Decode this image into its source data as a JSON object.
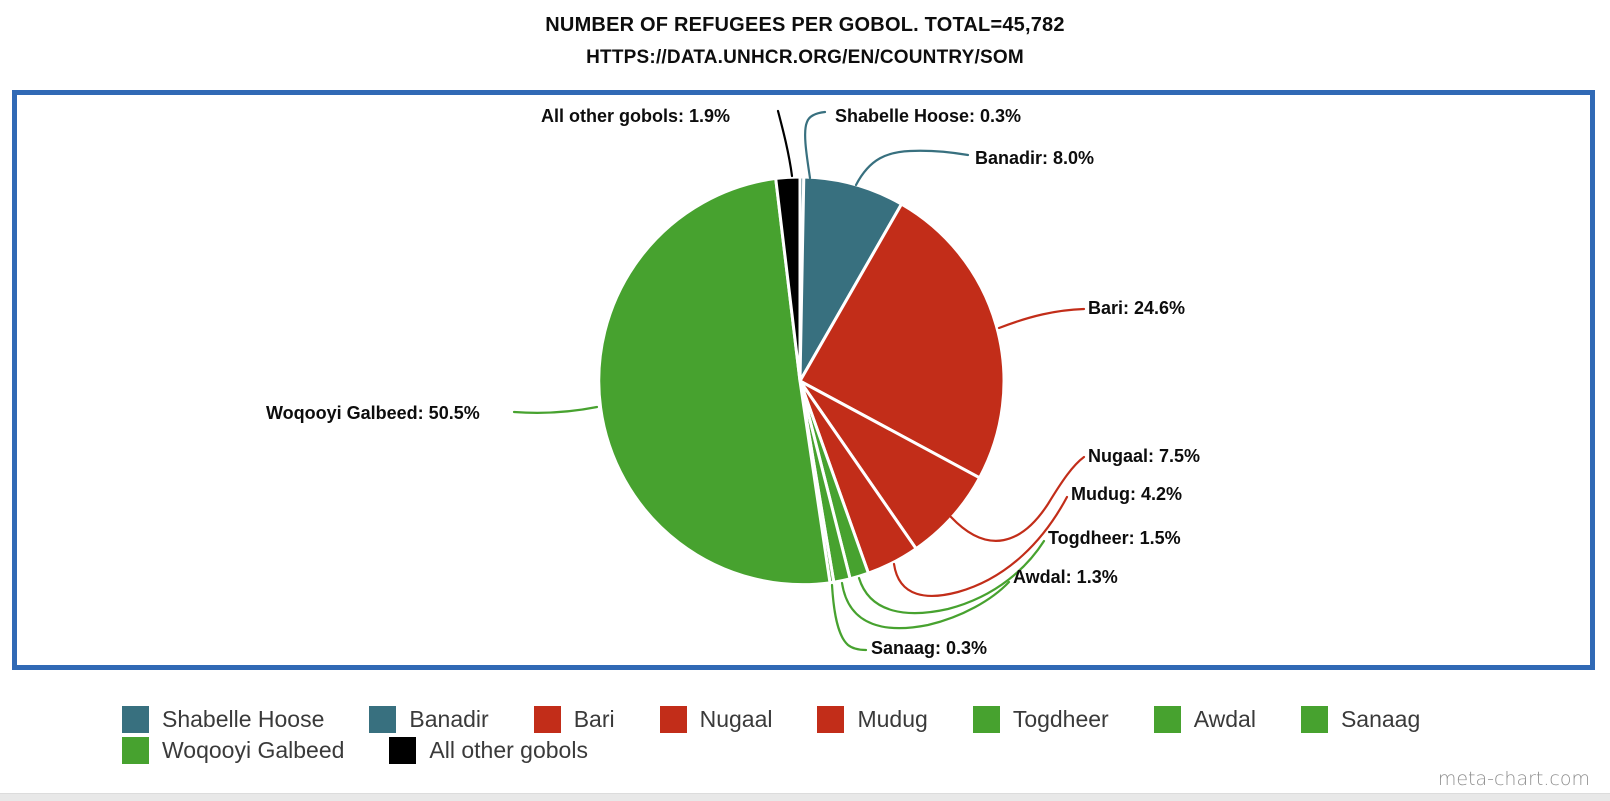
{
  "page": {
    "watermark": "meta-chart.com"
  },
  "colors": {
    "plot_border_blue": "#3069b5",
    "slice_divider": "#ffffff",
    "label_text": "#0d0d0d",
    "legend_text": "#3a3a3a",
    "watermark_text": "#8f8f8f",
    "teal": "#38707f",
    "red": "#c22d19",
    "green": "#47a22f",
    "black": "#000000"
  },
  "chart_data": {
    "type": "pie",
    "title": "NUMBER OF REFUGEES PER GOBOL. TOTAL=45,782",
    "subtitle": "HTTPS://DATA.UNHCR.ORG/EN/COUNTRY/SOM",
    "total": 45782,
    "value_unit": "percent",
    "start_angle": "12-o-clock",
    "direction": "clockwise",
    "legend_position": "bottom",
    "label_format": "{name}: {pct}%",
    "slices": [
      {
        "label": "Shabelle Hoose",
        "pct": 0.3,
        "color": "#38707f"
      },
      {
        "label": "Banadir",
        "pct": 8.0,
        "color": "#38707f"
      },
      {
        "label": "Bari",
        "pct": 24.6,
        "color": "#c22d19"
      },
      {
        "label": "Nugaal",
        "pct": 7.5,
        "color": "#c22d19"
      },
      {
        "label": "Mudug",
        "pct": 4.2,
        "color": "#c22d19"
      },
      {
        "label": "Togdheer",
        "pct": 1.5,
        "color": "#47a22f"
      },
      {
        "label": "Awdal",
        "pct": 1.3,
        "color": "#47a22f"
      },
      {
        "label": "Sanaag",
        "pct": 0.3,
        "color": "#47a22f"
      },
      {
        "label": "Woqooyi Galbeed",
        "pct": 50.5,
        "color": "#47a22f"
      },
      {
        "label": "All other gobols",
        "pct": 1.9,
        "color": "#000000"
      }
    ]
  }
}
